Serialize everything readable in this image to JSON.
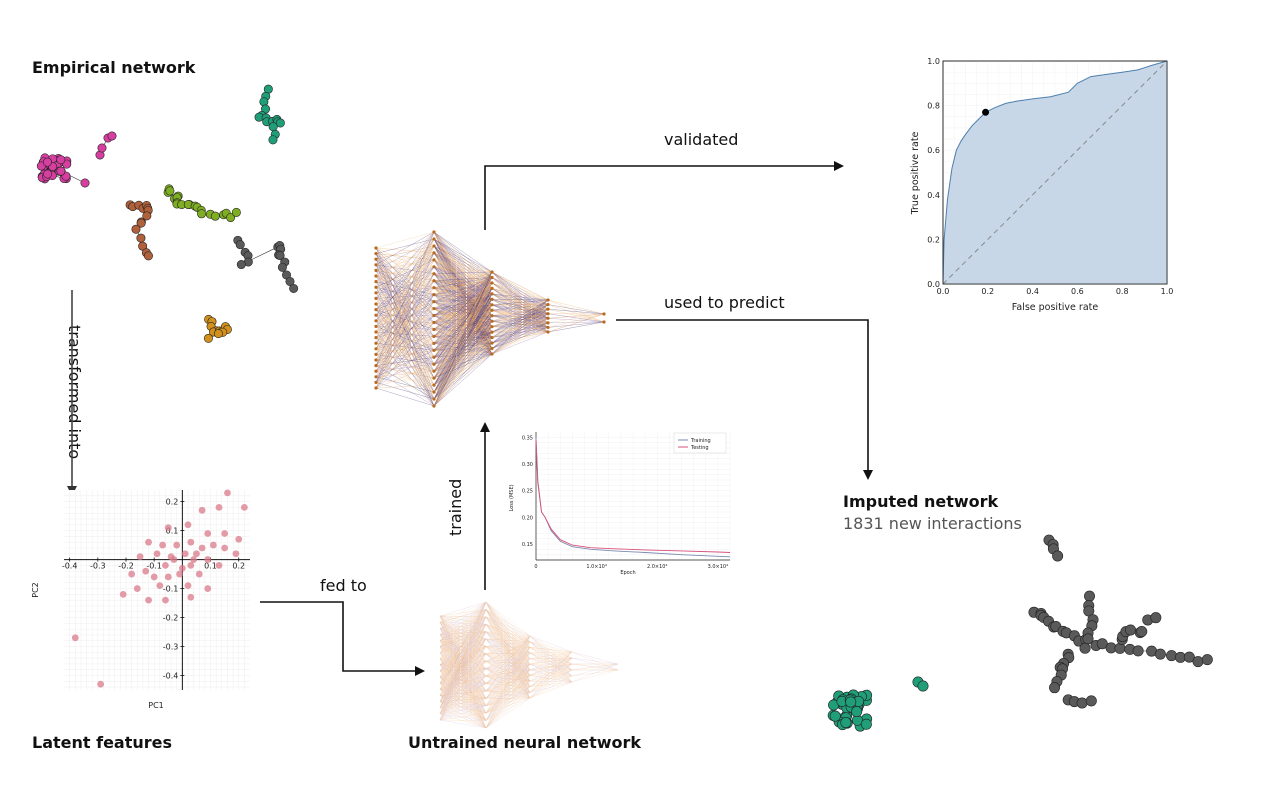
{
  "labels": {
    "empirical_network": "Empirical network",
    "latent_features": "Latent features",
    "untrained_nn": "Untrained neural network",
    "imputed_network": "Imputed network",
    "imputed_sub": "1831 new interactions"
  },
  "arrows": {
    "transformed_into": "transformed into",
    "fed_to": "fed to",
    "trained": "trained",
    "validated": "validated",
    "used_to_predict": "used to predict"
  },
  "pca_plot": {
    "xlabel": "PC1",
    "ylabel": "PC2",
    "xticks": [
      "-0.4",
      "-0.3",
      "-0.2",
      "-0.1",
      "0.1",
      "0.2"
    ],
    "yticks": [
      "0.2",
      "0.1",
      "-0.1",
      "-0.2",
      "-0.3",
      "-0.4"
    ]
  },
  "loss_plot": {
    "ylabel": "Loss (MSE)",
    "xlabel": "Epoch",
    "yticks": [
      "0.35",
      "0.30",
      "0.25",
      "0.20",
      "0.15"
    ],
    "xticks": [
      "0",
      "1.0×10⁴",
      "2.0×10⁴",
      "3.0×10⁴"
    ],
    "legend": [
      "Training",
      "Testing"
    ]
  },
  "roc_plot": {
    "xlabel": "False positive rate",
    "ylabel": "True positive rate",
    "ticks": [
      "0.0",
      "0.2",
      "0.4",
      "0.6",
      "0.8",
      "1.0"
    ]
  },
  "chart_data": [
    {
      "type": "scatter",
      "xlabel": "PC1",
      "ylabel": "PC2",
      "xlim": [
        -0.42,
        0.24
      ],
      "ylim": [
        -0.45,
        0.24
      ],
      "points": [
        [
          0.16,
          0.23
        ],
        [
          0.22,
          0.18
        ],
        [
          0.13,
          0.18
        ],
        [
          0.07,
          0.17
        ],
        [
          0.02,
          0.12
        ],
        [
          -0.05,
          0.11
        ],
        [
          0.09,
          0.09
        ],
        [
          0.15,
          0.09
        ],
        [
          0.2,
          0.07
        ],
        [
          0.19,
          0.02
        ],
        [
          -0.12,
          0.06
        ],
        [
          -0.07,
          0.05
        ],
        [
          -0.02,
          0.05
        ],
        [
          0.03,
          0.06
        ],
        [
          0.07,
          0.04
        ],
        [
          0.11,
          0.05
        ],
        [
          0.15,
          0.04
        ],
        [
          -0.09,
          0.02
        ],
        [
          -0.04,
          0.01
        ],
        [
          0.01,
          0.02
        ],
        [
          0.05,
          0.02
        ],
        [
          -0.15,
          0.01
        ],
        [
          -0.03,
          0.0
        ],
        [
          0.04,
          0.0
        ],
        [
          0.09,
          0.0
        ],
        [
          -0.06,
          -0.02
        ],
        [
          0.0,
          -0.03
        ],
        [
          0.03,
          -0.02
        ],
        [
          0.13,
          -0.02
        ],
        [
          -0.13,
          -0.04
        ],
        [
          -0.1,
          -0.06
        ],
        [
          -0.05,
          -0.06
        ],
        [
          -0.01,
          -0.05
        ],
        [
          0.06,
          -0.05
        ],
        [
          -0.18,
          -0.05
        ],
        [
          -0.08,
          -0.09
        ],
        [
          0.02,
          -0.09
        ],
        [
          0.09,
          -0.1
        ],
        [
          -0.16,
          -0.1
        ],
        [
          -0.21,
          -0.12
        ],
        [
          -0.06,
          -0.14
        ],
        [
          0.03,
          -0.13
        ],
        [
          -0.12,
          -0.14
        ],
        [
          -0.38,
          -0.27
        ],
        [
          -0.29,
          -0.43
        ]
      ]
    },
    {
      "type": "line",
      "xlabel": "Epoch",
      "ylabel": "Loss (MSE)",
      "xlim": [
        0,
        32000
      ],
      "ylim": [
        0.12,
        0.36
      ],
      "series": [
        {
          "name": "Training",
          "x": [
            0,
            300,
            900,
            1500,
            2500,
            4000,
            6000,
            9000,
            13000,
            18000,
            24000,
            30000,
            32000
          ],
          "values": [
            0.35,
            0.27,
            0.21,
            0.2,
            0.175,
            0.155,
            0.145,
            0.14,
            0.137,
            0.134,
            0.13,
            0.127,
            0.126
          ]
        },
        {
          "name": "Testing",
          "x": [
            0,
            300,
            900,
            1500,
            2500,
            4000,
            6000,
            9000,
            13000,
            18000,
            24000,
            30000,
            32000
          ],
          "values": [
            0.345,
            0.265,
            0.21,
            0.2,
            0.178,
            0.158,
            0.148,
            0.143,
            0.141,
            0.139,
            0.137,
            0.135,
            0.134
          ]
        }
      ]
    },
    {
      "type": "area",
      "xlabel": "False positive rate",
      "ylabel": "True positive rate",
      "xlim": [
        0,
        1
      ],
      "ylim": [
        0,
        1
      ],
      "series": [
        {
          "x": [
            0,
            0.005,
            0.02,
            0.04,
            0.06,
            0.08,
            0.1,
            0.13,
            0.16,
            0.19,
            0.23,
            0.28,
            0.33,
            0.4,
            0.48,
            0.56,
            0.6,
            0.66,
            0.73,
            0.8,
            0.87,
            0.93,
            1.0
          ],
          "values": [
            0,
            0.2,
            0.38,
            0.52,
            0.6,
            0.64,
            0.67,
            0.71,
            0.74,
            0.77,
            0.79,
            0.81,
            0.82,
            0.83,
            0.84,
            0.86,
            0.9,
            0.93,
            0.94,
            0.95,
            0.96,
            0.98,
            1.0
          ]
        }
      ],
      "marker": [
        0.19,
        0.77
      ],
      "diagonal": true
    }
  ],
  "colors": {
    "magenta": "#d63fa0",
    "green_teal": "#1f9e78",
    "lime": "#7fae22",
    "brown": "#b0603a",
    "gray": "#5a5a5a",
    "orange": "#d2901c",
    "pca_points": "#d97a8a",
    "roc_fill": "#c5d5e6",
    "roc_line": "#4d7fae"
  }
}
